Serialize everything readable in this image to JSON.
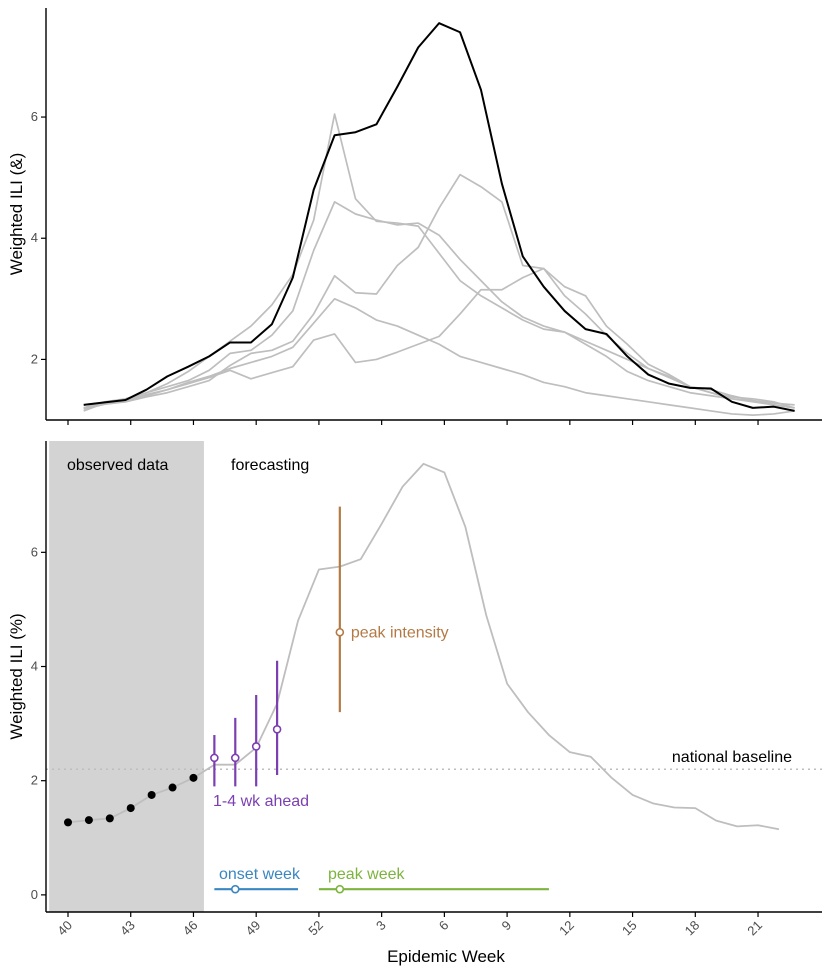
{
  "chart_data": [
    {
      "type": "line",
      "panel": "top",
      "title": "",
      "xlabel": "",
      "ylabel": "Weighted ILI (&)",
      "ylim": [
        1.0,
        7.8
      ],
      "y_ticks": [
        2,
        4,
        6
      ],
      "grid": false,
      "x_range_weeks": [
        0,
        33
      ],
      "series": [
        {
          "name": "current-season",
          "color": "#000000",
          "values": [
            1.25,
            1.29,
            1.33,
            1.5,
            1.72,
            1.88,
            2.05,
            2.28,
            2.28,
            2.58,
            3.35,
            4.8,
            5.7,
            5.75,
            5.88,
            6.5,
            7.15,
            7.55,
            7.4,
            6.45,
            4.9,
            3.7,
            3.2,
            2.8,
            2.5,
            2.42,
            2.05,
            1.75,
            1.6,
            1.53,
            1.52,
            1.3,
            1.2,
            1.22,
            1.15
          ]
        },
        {
          "name": "past-season-1",
          "color": "#bebebe",
          "values": [
            1.2,
            1.28,
            1.32,
            1.4,
            1.5,
            1.6,
            1.7,
            1.82,
            1.68,
            1.78,
            1.88,
            2.32,
            2.42,
            1.95,
            2.0,
            2.12,
            2.25,
            2.38,
            2.75,
            3.15,
            3.15,
            3.35,
            3.5,
            3.2,
            3.05,
            2.55,
            2.25,
            1.92,
            1.75,
            1.55,
            1.5,
            1.4,
            1.32,
            1.28,
            1.25
          ]
        },
        {
          "name": "past-season-2",
          "color": "#bebebe",
          "values": [
            1.18,
            1.26,
            1.3,
            1.38,
            1.45,
            1.55,
            1.65,
            1.9,
            2.1,
            2.15,
            2.3,
            2.75,
            3.38,
            3.1,
            3.08,
            3.55,
            3.85,
            4.5,
            5.05,
            4.85,
            4.6,
            3.55,
            3.5,
            3.05,
            2.75,
            2.4,
            2.1,
            1.85,
            1.7,
            1.55,
            1.45,
            1.35,
            1.3,
            1.25,
            1.2
          ]
        },
        {
          "name": "past-season-3",
          "color": "#bebebe",
          "values": [
            1.15,
            1.28,
            1.3,
            1.42,
            1.5,
            1.62,
            1.72,
            1.85,
            1.95,
            2.05,
            2.2,
            2.6,
            3.0,
            2.85,
            2.65,
            2.55,
            2.4,
            2.25,
            2.05,
            1.95,
            1.85,
            1.75,
            1.62,
            1.55,
            1.45,
            1.4,
            1.35,
            1.3,
            1.25,
            1.2,
            1.15,
            1.1,
            1.08,
            1.1,
            1.15
          ]
        },
        {
          "name": "past-season-4",
          "color": "#bebebe",
          "values": [
            1.2,
            1.28,
            1.32,
            1.45,
            1.55,
            1.65,
            1.82,
            2.1,
            2.15,
            2.4,
            2.8,
            3.8,
            4.6,
            4.4,
            4.3,
            4.22,
            4.25,
            4.05,
            3.65,
            3.3,
            2.95,
            2.7,
            2.55,
            2.45,
            2.25,
            2.05,
            1.8,
            1.65,
            1.55,
            1.45,
            1.4,
            1.35,
            1.32,
            1.25,
            1.2
          ]
        },
        {
          "name": "past-season-5",
          "color": "#bebebe",
          "values": [
            1.2,
            1.3,
            1.35,
            1.45,
            1.6,
            1.8,
            2.05,
            2.3,
            2.55,
            2.9,
            3.4,
            4.3,
            6.05,
            4.65,
            4.28,
            4.25,
            4.2,
            3.75,
            3.3,
            3.05,
            2.85,
            2.65,
            2.5,
            2.45,
            2.3,
            2.15,
            2.0,
            1.85,
            1.72,
            1.55,
            1.45,
            1.38,
            1.35,
            1.3,
            1.2
          ]
        }
      ]
    },
    {
      "type": "line",
      "panel": "bottom",
      "title": "",
      "xlabel": "Epidemic Week",
      "ylabel": "Weighted ILI (%)",
      "ylim": [
        -0.3,
        7.95
      ],
      "y_ticks": [
        0,
        2,
        4,
        6
      ],
      "grid": false,
      "x_range_weeks": [
        0,
        33
      ],
      "x_ticks": [
        {
          "week": 0,
          "label": "40"
        },
        {
          "week": 3,
          "label": "43"
        },
        {
          "week": 6,
          "label": "46"
        },
        {
          "week": 9,
          "label": "49"
        },
        {
          "week": 12,
          "label": "52"
        },
        {
          "week": 15,
          "label": "3"
        },
        {
          "week": 18,
          "label": "6"
        },
        {
          "week": 21,
          "label": "9"
        },
        {
          "week": 24,
          "label": "12"
        },
        {
          "week": 27,
          "label": "15"
        },
        {
          "week": 30,
          "label": "18"
        },
        {
          "week": 33,
          "label": "21"
        }
      ],
      "observed_region": {
        "x_start": -0.9,
        "x_end": 6.5,
        "color": "#d3d3d3"
      },
      "region_labels": {
        "observed": "observed data",
        "forecasting": "forecasting"
      },
      "season_curve": {
        "name": "season-curve",
        "color": "#bebebe",
        "x": [
          6,
          7,
          8,
          9,
          10,
          11,
          12,
          13,
          14,
          15,
          16,
          17,
          18,
          19,
          20,
          21,
          22,
          23,
          24,
          25,
          26,
          27,
          28,
          29,
          30,
          31,
          32,
          33,
          34
        ],
        "values": [
          2.05,
          2.28,
          2.28,
          2.58,
          3.35,
          4.8,
          5.7,
          5.75,
          5.88,
          6.5,
          7.15,
          7.55,
          7.4,
          6.45,
          4.9,
          3.7,
          3.2,
          2.8,
          2.5,
          2.42,
          2.05,
          1.75,
          1.6,
          1.53,
          1.52,
          1.3,
          1.2,
          1.22,
          1.15
        ]
      },
      "observed_points": {
        "color": "#000000",
        "x": [
          0,
          1,
          2,
          3,
          4,
          5,
          6
        ],
        "values": [
          1.27,
          1.31,
          1.34,
          1.52,
          1.75,
          1.88,
          2.05
        ]
      },
      "baseline": {
        "label": "national baseline",
        "value": 2.2,
        "color": "#bebebe"
      },
      "short_term_forecasts": {
        "label": "1-4 wk ahead",
        "color": "#7b3fb1",
        "points": [
          {
            "x": 7,
            "y": 2.4,
            "low": 1.9,
            "high": 2.8
          },
          {
            "x": 8,
            "y": 2.4,
            "low": 1.9,
            "high": 3.1
          },
          {
            "x": 9,
            "y": 2.6,
            "low": 1.9,
            "high": 3.5
          },
          {
            "x": 10,
            "y": 2.9,
            "low": 2.1,
            "high": 4.1
          }
        ]
      },
      "peak_intensity": {
        "label": "peak intensity",
        "color": "#b47a45",
        "x": 13,
        "y": 4.6,
        "low": 3.2,
        "high": 6.8
      },
      "onset_week": {
        "label": "onset week",
        "color": "#3a86c0",
        "x": 8,
        "low": 7,
        "high": 11,
        "y": 0.1
      },
      "peak_week": {
        "label": "peak week",
        "color": "#7db43e",
        "x": 13,
        "low": 12,
        "high": 23,
        "y": 0.1
      }
    }
  ]
}
